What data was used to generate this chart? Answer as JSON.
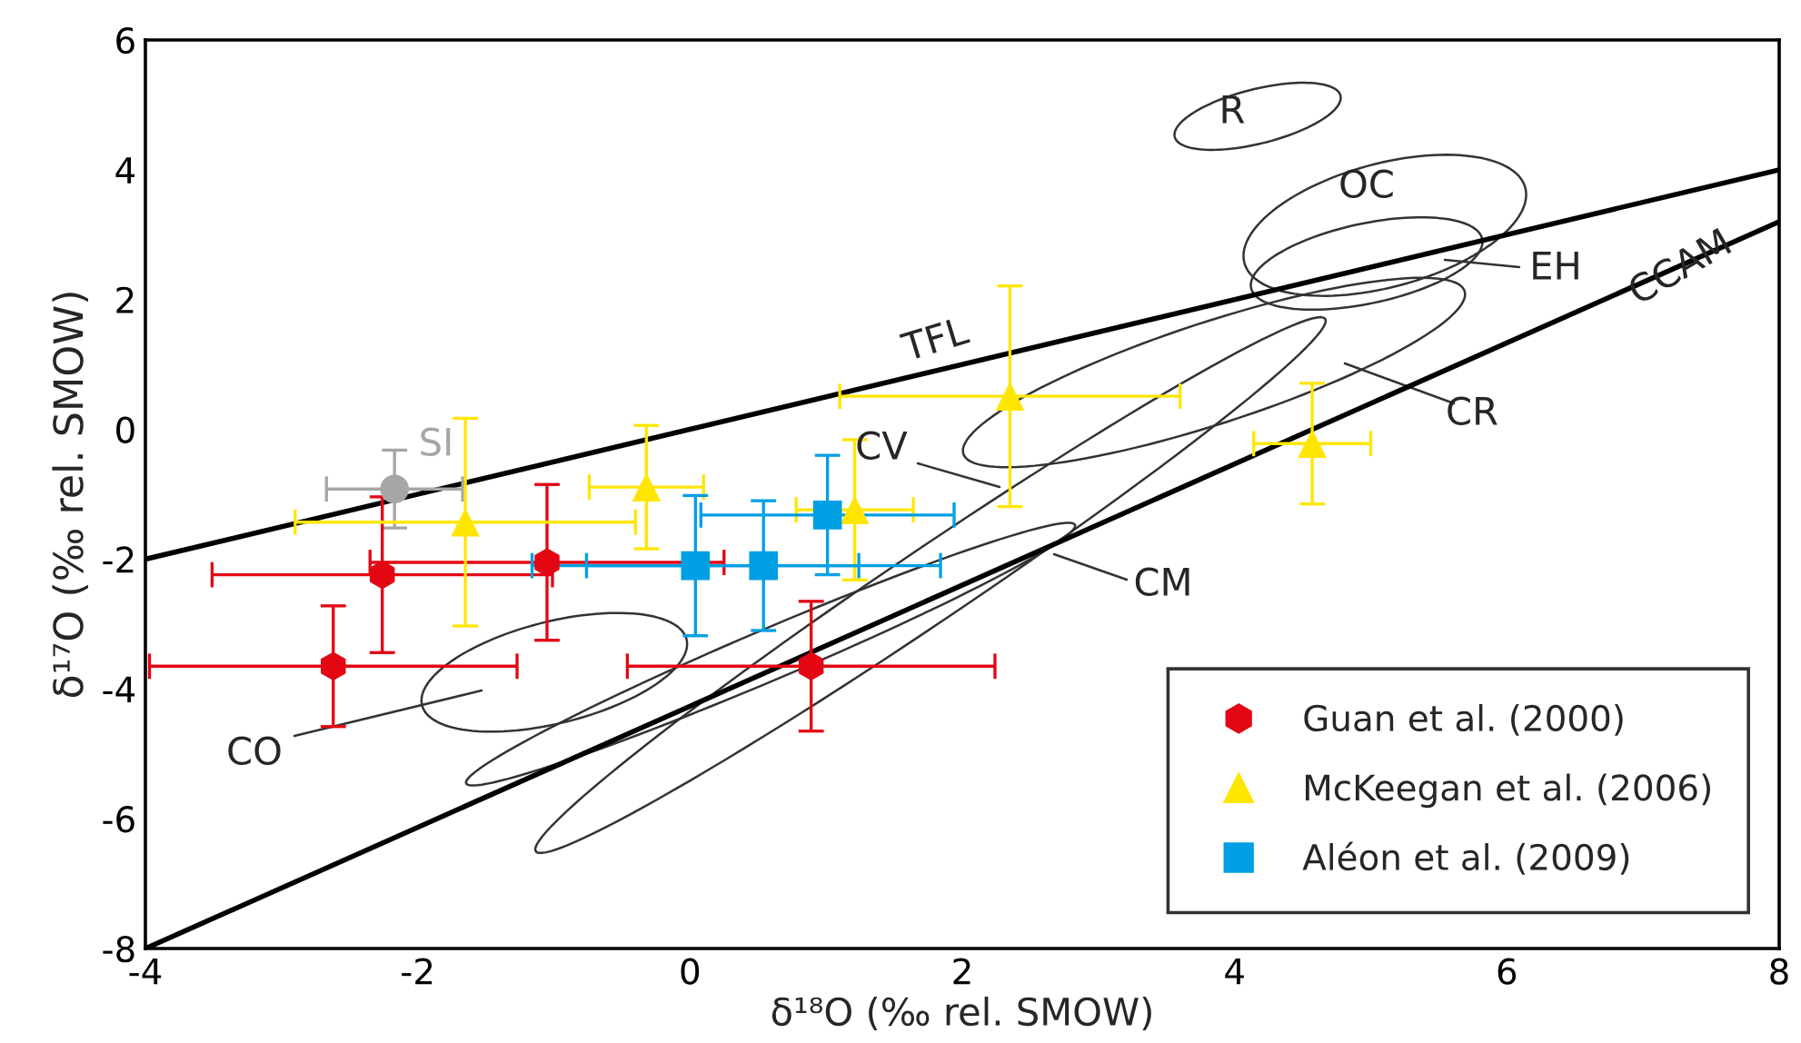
{
  "chart_data": {
    "type": "scatter",
    "xlabel": "δ¹⁸O (‰ rel. SMOW)",
    "ylabel": "δ¹⁷O (‰ rel. SMOW)",
    "xlim": [
      -4,
      8
    ],
    "ylim": [
      -8,
      6
    ],
    "xticks": [
      -4,
      -2,
      0,
      2,
      4,
      6,
      8
    ],
    "yticks": [
      -8,
      -6,
      -4,
      -2,
      0,
      2,
      4,
      6
    ],
    "grid": false,
    "legend": "bottom right",
    "series": [
      {
        "type": "line",
        "color": "#000000",
        "x": [
          -4,
          8
        ],
        "values": [
          -2,
          4
        ]
      },
      {
        "type": "line",
        "color": "#000000",
        "x": [
          -4,
          8
        ],
        "values": [
          -8,
          3.2
        ]
      },
      {
        "color": "#a6a6a6",
        "marker": "circle",
        "x": [
          -2.17
        ],
        "values": [
          -0.92
        ],
        "errors": [
          0.6
        ],
        "xerrors": [
          0.5
        ]
      },
      {
        "name": "Guan et al. (2000)",
        "color": "#e30613",
        "x": [
          -2.26,
          -1.05,
          -2.62,
          0.89
        ],
        "values": [
          -2.24,
          -2.05,
          -3.65,
          -3.65
        ],
        "errors": [
          1.2,
          1.2,
          0.93,
          1.0
        ],
        "xerrors": [
          1.25,
          1.3,
          1.35,
          1.35
        ]
      },
      {
        "name": "McKeegan et al. (2006)",
        "color": "#ffe600",
        "marker": "triangle",
        "x": [
          -1.65,
          -0.32,
          2.35,
          1.21,
          4.57
        ],
        "values": [
          -1.43,
          -0.89,
          0.51,
          -1.24,
          -0.22
        ],
        "errors": [
          1.6,
          0.95,
          1.7,
          1.08,
          0.93
        ],
        "xerrors": [
          1.25,
          0.42,
          1.25,
          0.43,
          0.43
        ]
      },
      {
        "name": "Aléon et al. (2009)",
        "color": "#009fe3",
        "marker": "square",
        "x": [
          0.04,
          0.54,
          1.01
        ],
        "values": [
          -2.1,
          -2.1,
          -1.32
        ],
        "errors": [
          1.08,
          1.0,
          0.92
        ],
        "xerrors": [
          1.2,
          1.3,
          0.93
        ]
      }
    ],
    "annotations": [
      "TFL",
      "CCAM",
      "SI",
      "R",
      "OC",
      "EH",
      "CR",
      "CV",
      "CM",
      "CO"
    ]
  }
}
